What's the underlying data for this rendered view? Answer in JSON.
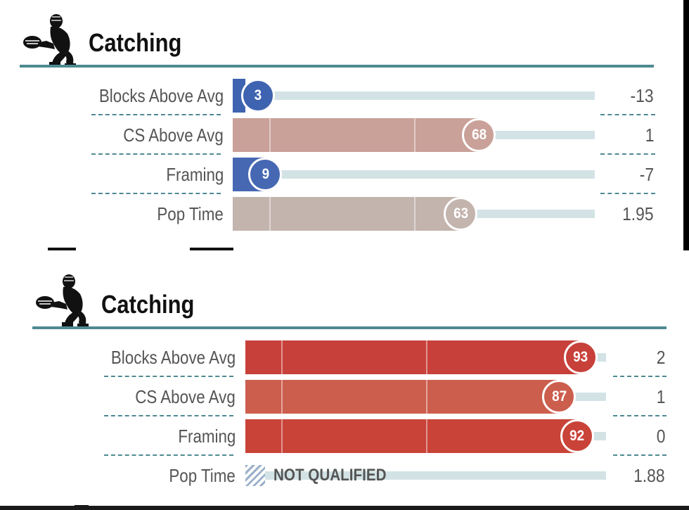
{
  "chart_data": [
    {
      "type": "bar",
      "title": "Catching",
      "xlim": [
        0,
        100
      ],
      "rows": [
        {
          "label": "Blocks Above Avg",
          "percentile": 3,
          "value": "-13",
          "color": "#3e63b0"
        },
        {
          "label": "CS Above Avg",
          "percentile": 68,
          "value": "1",
          "color": "#c9a199"
        },
        {
          "label": "Framing",
          "percentile": 9,
          "value": "-7",
          "color": "#4668b3"
        },
        {
          "label": "Pop Time",
          "percentile": 63,
          "value": "1.95",
          "color": "#c4b4ae"
        }
      ]
    },
    {
      "type": "bar",
      "title": "Catching",
      "xlim": [
        0,
        100
      ],
      "rows": [
        {
          "label": "Blocks Above Avg",
          "percentile": 93,
          "value": "2",
          "color": "#c8403a"
        },
        {
          "label": "CS Above Avg",
          "percentile": 87,
          "value": "1",
          "color": "#cc5e4d"
        },
        {
          "label": "Framing",
          "percentile": 92,
          "value": "0",
          "color": "#c94339"
        },
        {
          "label": "Pop Time",
          "percentile": null,
          "value": "1.88",
          "color": "#9ab0c8",
          "status": "NOT QUALIFIED"
        }
      ]
    }
  ],
  "icons": [
    "catcher-icon"
  ],
  "colors": {
    "rule": "#4f8a92",
    "track": "#d3e3e5"
  }
}
